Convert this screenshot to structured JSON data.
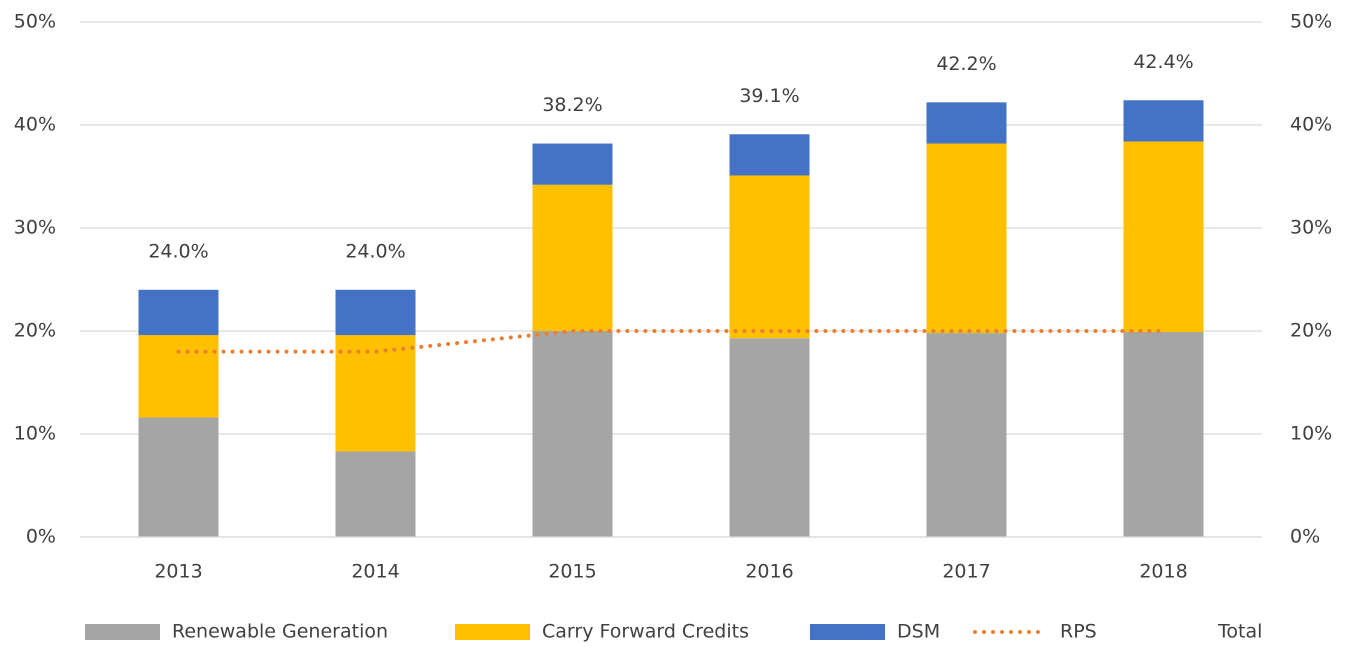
{
  "chart_data": {
    "type": "bar",
    "stacked": true,
    "categories": [
      "2013",
      "2014",
      "2015",
      "2016",
      "2017",
      "2018"
    ],
    "series": [
      {
        "name": "Renewable Generation",
        "type": "bar",
        "color": "#a5a5a5",
        "values": [
          11.6,
          8.3,
          20.0,
          19.3,
          19.8,
          19.9
        ]
      },
      {
        "name": "Carry Forward Credits",
        "type": "bar",
        "color": "#ffc000",
        "values": [
          8.0,
          11.3,
          14.2,
          15.8,
          18.4,
          18.5
        ]
      },
      {
        "name": "DSM",
        "type": "bar",
        "color": "#4472c4",
        "values": [
          4.4,
          4.4,
          4.0,
          4.0,
          4.0,
          4.0
        ]
      },
      {
        "name": "RPS",
        "type": "line",
        "line_style": "dotted",
        "color": "#ed7d31",
        "values": [
          18.0,
          18.0,
          20.0,
          20.0,
          20.0,
          20.0
        ]
      },
      {
        "name": "Total",
        "type": "label",
        "values": [
          24.0,
          24.0,
          38.2,
          39.1,
          42.2,
          42.4
        ],
        "value_labels": [
          "24.0%",
          "24.0%",
          "38.2%",
          "39.1%",
          "42.2%",
          "42.4%"
        ]
      }
    ],
    "ylim": [
      0,
      50
    ],
    "yticks": [
      {
        "value": 0,
        "label": "0%"
      },
      {
        "value": 10,
        "label": "10%"
      },
      {
        "value": 20,
        "label": "20%"
      },
      {
        "value": 30,
        "label": "30%"
      },
      {
        "value": 40,
        "label": "40%"
      },
      {
        "value": 50,
        "label": "50%"
      }
    ],
    "y2lim": [
      0,
      50
    ],
    "y2ticks": [
      {
        "value": 0,
        "label": "0%"
      },
      {
        "value": 10,
        "label": "10%"
      },
      {
        "value": 20,
        "label": "20%"
      },
      {
        "value": 30,
        "label": "30%"
      },
      {
        "value": 40,
        "label": "40%"
      },
      {
        "value": 50,
        "label": "50%"
      }
    ],
    "grid": true,
    "legend": "bottom"
  }
}
